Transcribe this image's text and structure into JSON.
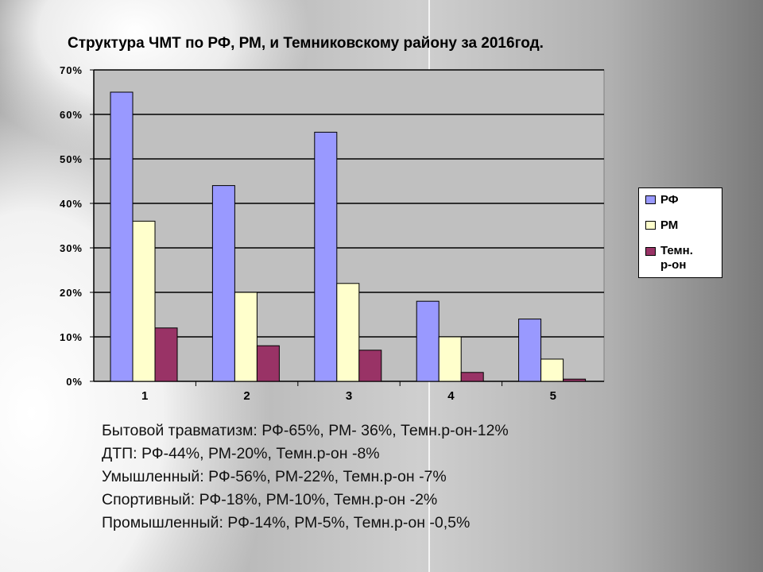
{
  "chart_data": {
    "type": "bar",
    "title": "Структура ЧМТ по РФ, РМ, и Темниковскому району за 2016год.",
    "categories": [
      "1",
      "2",
      "3",
      "4",
      "5"
    ],
    "series": [
      {
        "name": "РФ",
        "color": "#9999ff",
        "values": [
          65,
          44,
          56,
          18,
          14
        ]
      },
      {
        "name": "РМ",
        "color": "#ffffcc",
        "values": [
          36,
          20,
          22,
          10,
          5
        ]
      },
      {
        "name": "Темн. р-он",
        "color": "#993366",
        "values": [
          12,
          8,
          7,
          2,
          0.5
        ]
      }
    ],
    "ylim": [
      0,
      70
    ],
    "yticks": [
      "0%",
      "10%",
      "20%",
      "30%",
      "40%",
      "50%",
      "60%",
      "70%"
    ],
    "grid": true,
    "legend_position": "right",
    "legend_labels": [
      "РФ",
      "РМ",
      "Темн.",
      "р-он"
    ]
  },
  "notes": [
    "Бытовой травматизм: РФ-65%, РМ-  36%, Темн.р-он-12%",
    "ДТП: РФ-44%, РМ-20%, Темн.р-он -8%",
    "Умышленный: РФ-56%, РМ-22%, Темн.р-он -7%",
    "Спортивный: РФ-18%, РМ-10%, Темн.р-он -2%",
    "Промышленный: РФ-14%, РМ-5%, Темн.р-он -0,5%"
  ]
}
